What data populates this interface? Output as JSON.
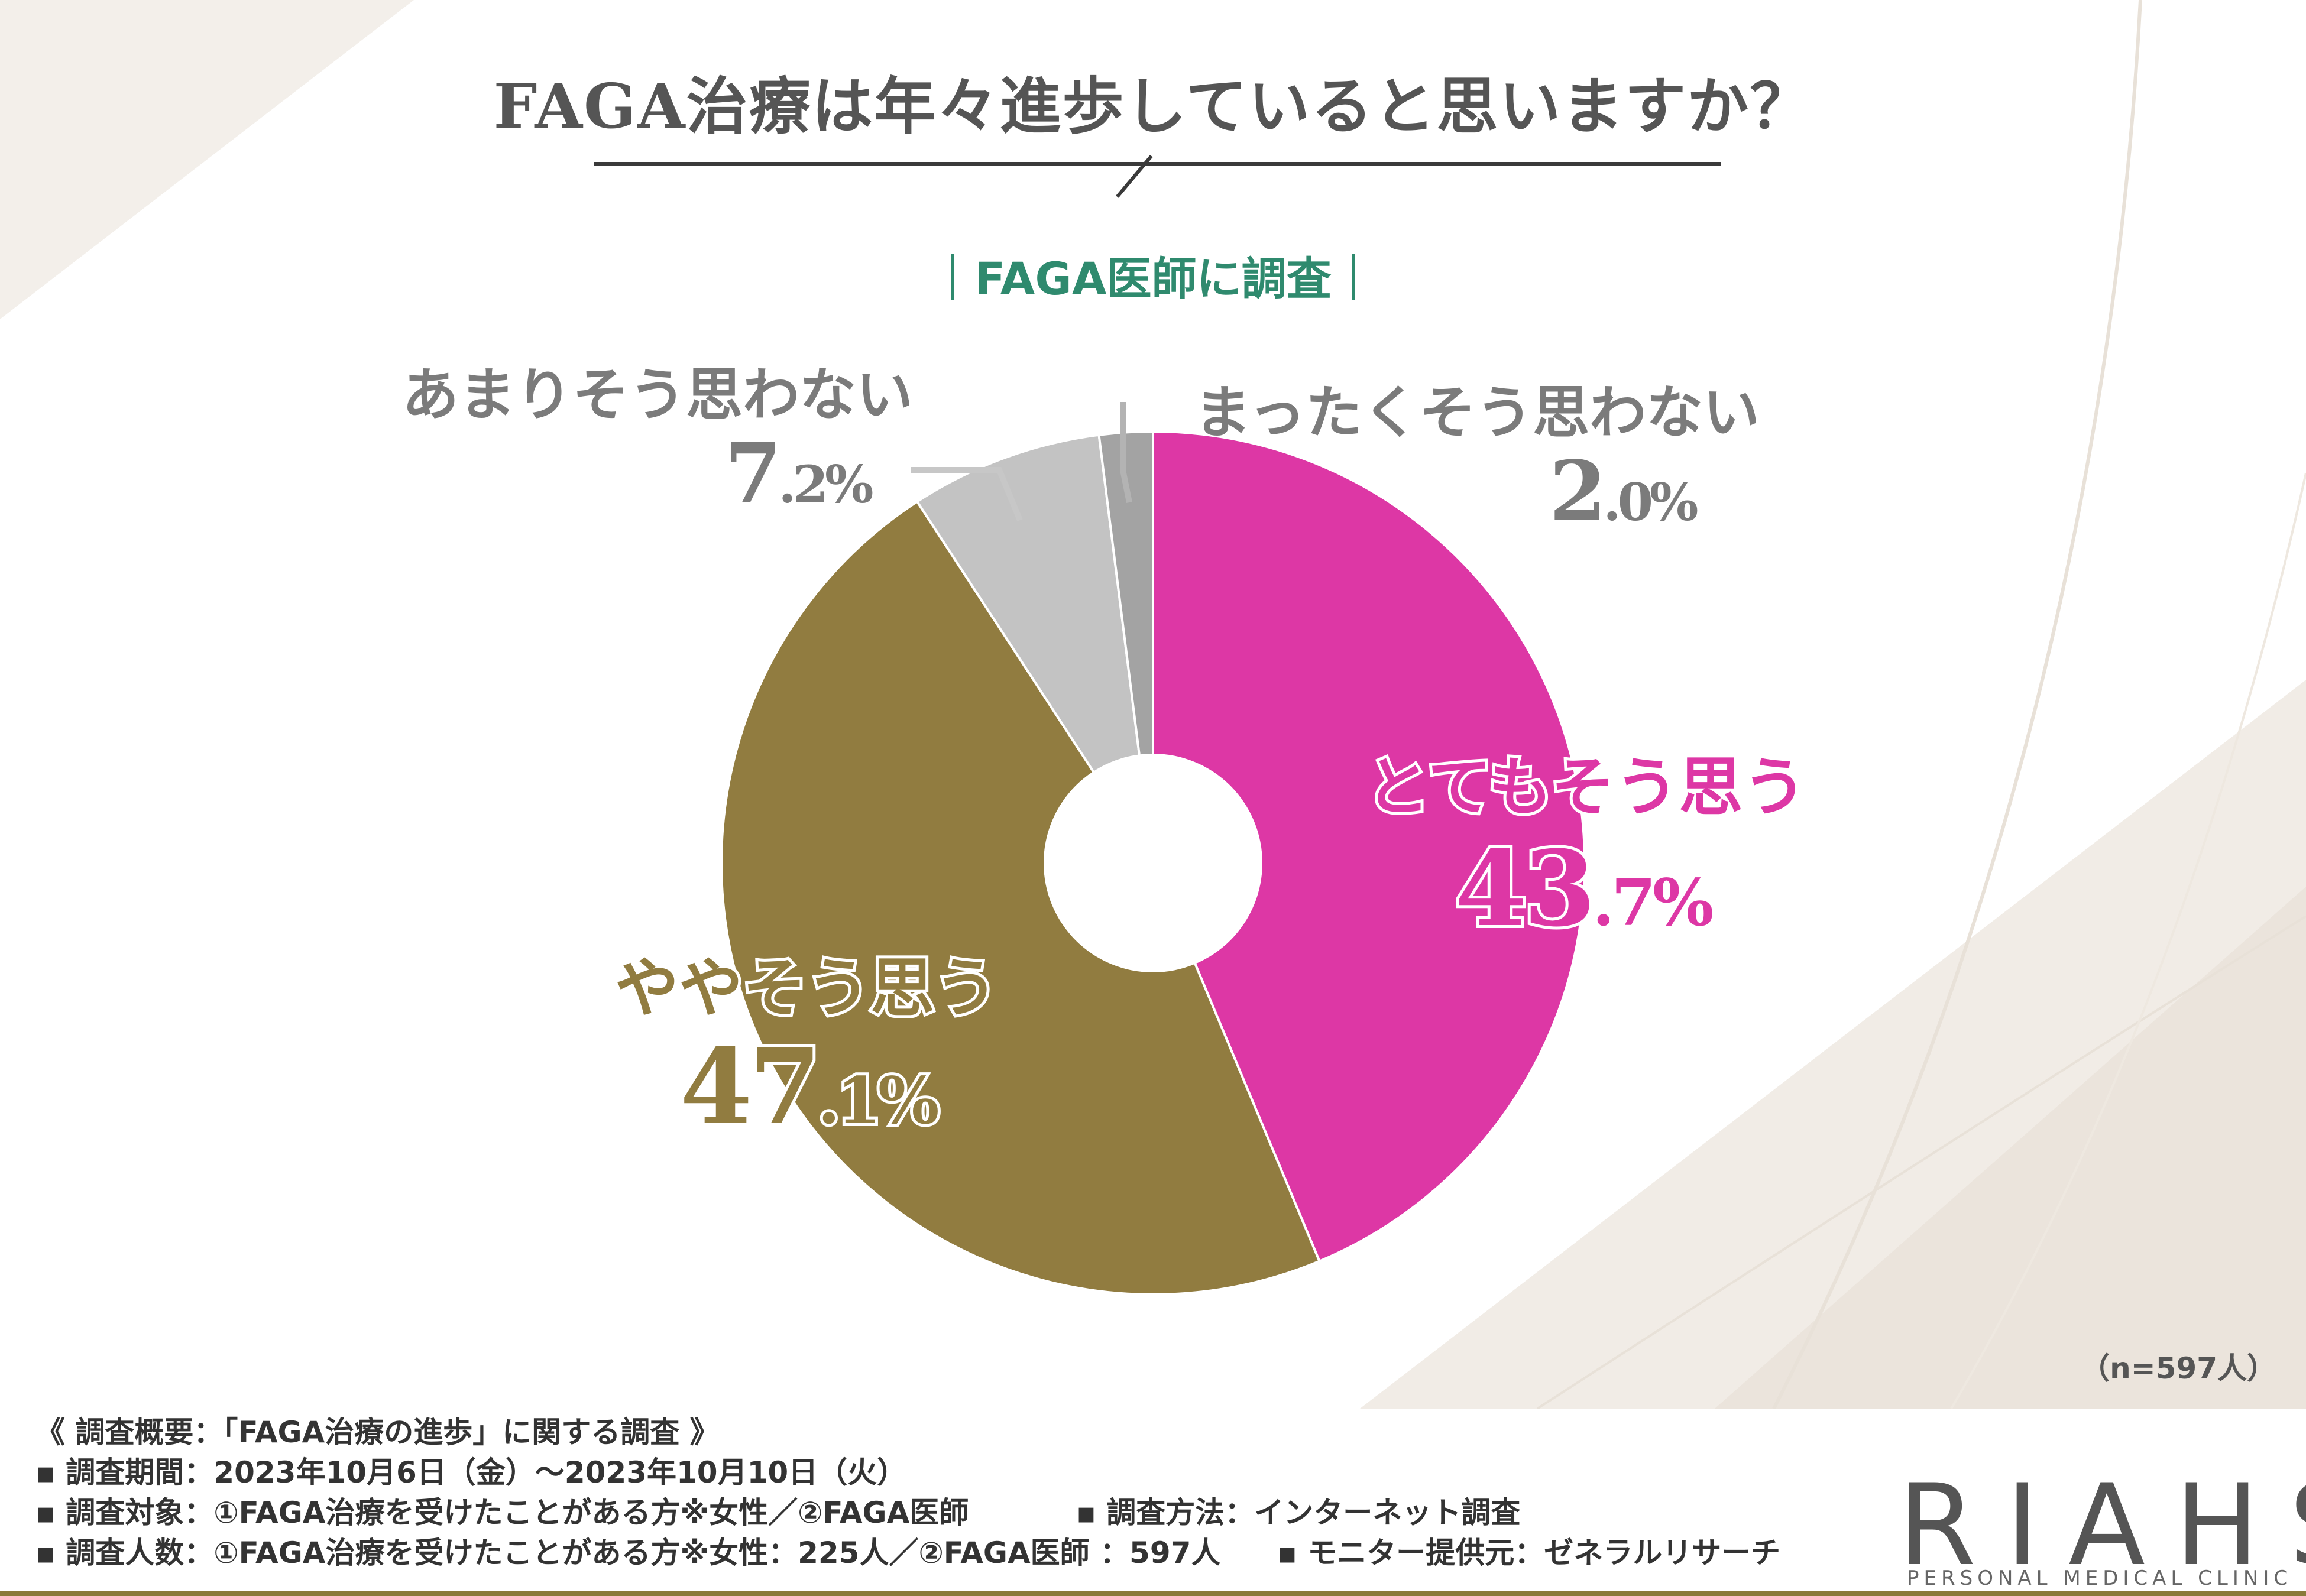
{
  "title": "FAGA治療は年々進歩していると思いますか？",
  "subtitle": "FAGA医師に調査",
  "n_note": "（n=597人）",
  "colors": {
    "very": "#dd37a5",
    "somewhat": "#917c40",
    "not_much": "#c3c3c3",
    "not_at_all": "#a3a3a3"
  },
  "chart_data": {
    "type": "pie",
    "donut": true,
    "slices": [
      {
        "label": "とてもそう思う",
        "value": 43.7,
        "pct_int": "43",
        "pct_dec": ".7%",
        "color": "#dd37a5"
      },
      {
        "label": "ややそう思う",
        "value": 47.1,
        "pct_int": "47",
        "pct_dec": ".1%",
        "color": "#917c40"
      },
      {
        "label": "あまりそう思わない",
        "value": 7.2,
        "pct_int": "7",
        "pct_dec": ".2%",
        "color": "#c3c3c3"
      },
      {
        "label": "まったくそう思わない",
        "value": 2.0,
        "pct_int": "2",
        "pct_dec": ".0%",
        "color": "#a3a3a3"
      }
    ]
  },
  "footer": {
    "line1": "《 調査概要：「FAGA治療の進歩」に関する調査 》",
    "line2": "▪ 調査期間：2023年10月6日（金）〜2023年10月10日（火）",
    "line3a": "▪ 調査対象：①FAGA治療を受けたことがある方※女性／②FAGA医師",
    "line3b": "▪ 調査方法：インターネット調査",
    "line4a": "▪ 調査人数：①FAGA治療を受けたことがある方※女性：225人／②FAGA医師 ：597人",
    "line4b": "▪ モニター提供元：ゼネラルリサーチ"
  },
  "logo": {
    "main": "RIAHS",
    "sub": "PERSONAL MEDICAL CLINIC"
  }
}
